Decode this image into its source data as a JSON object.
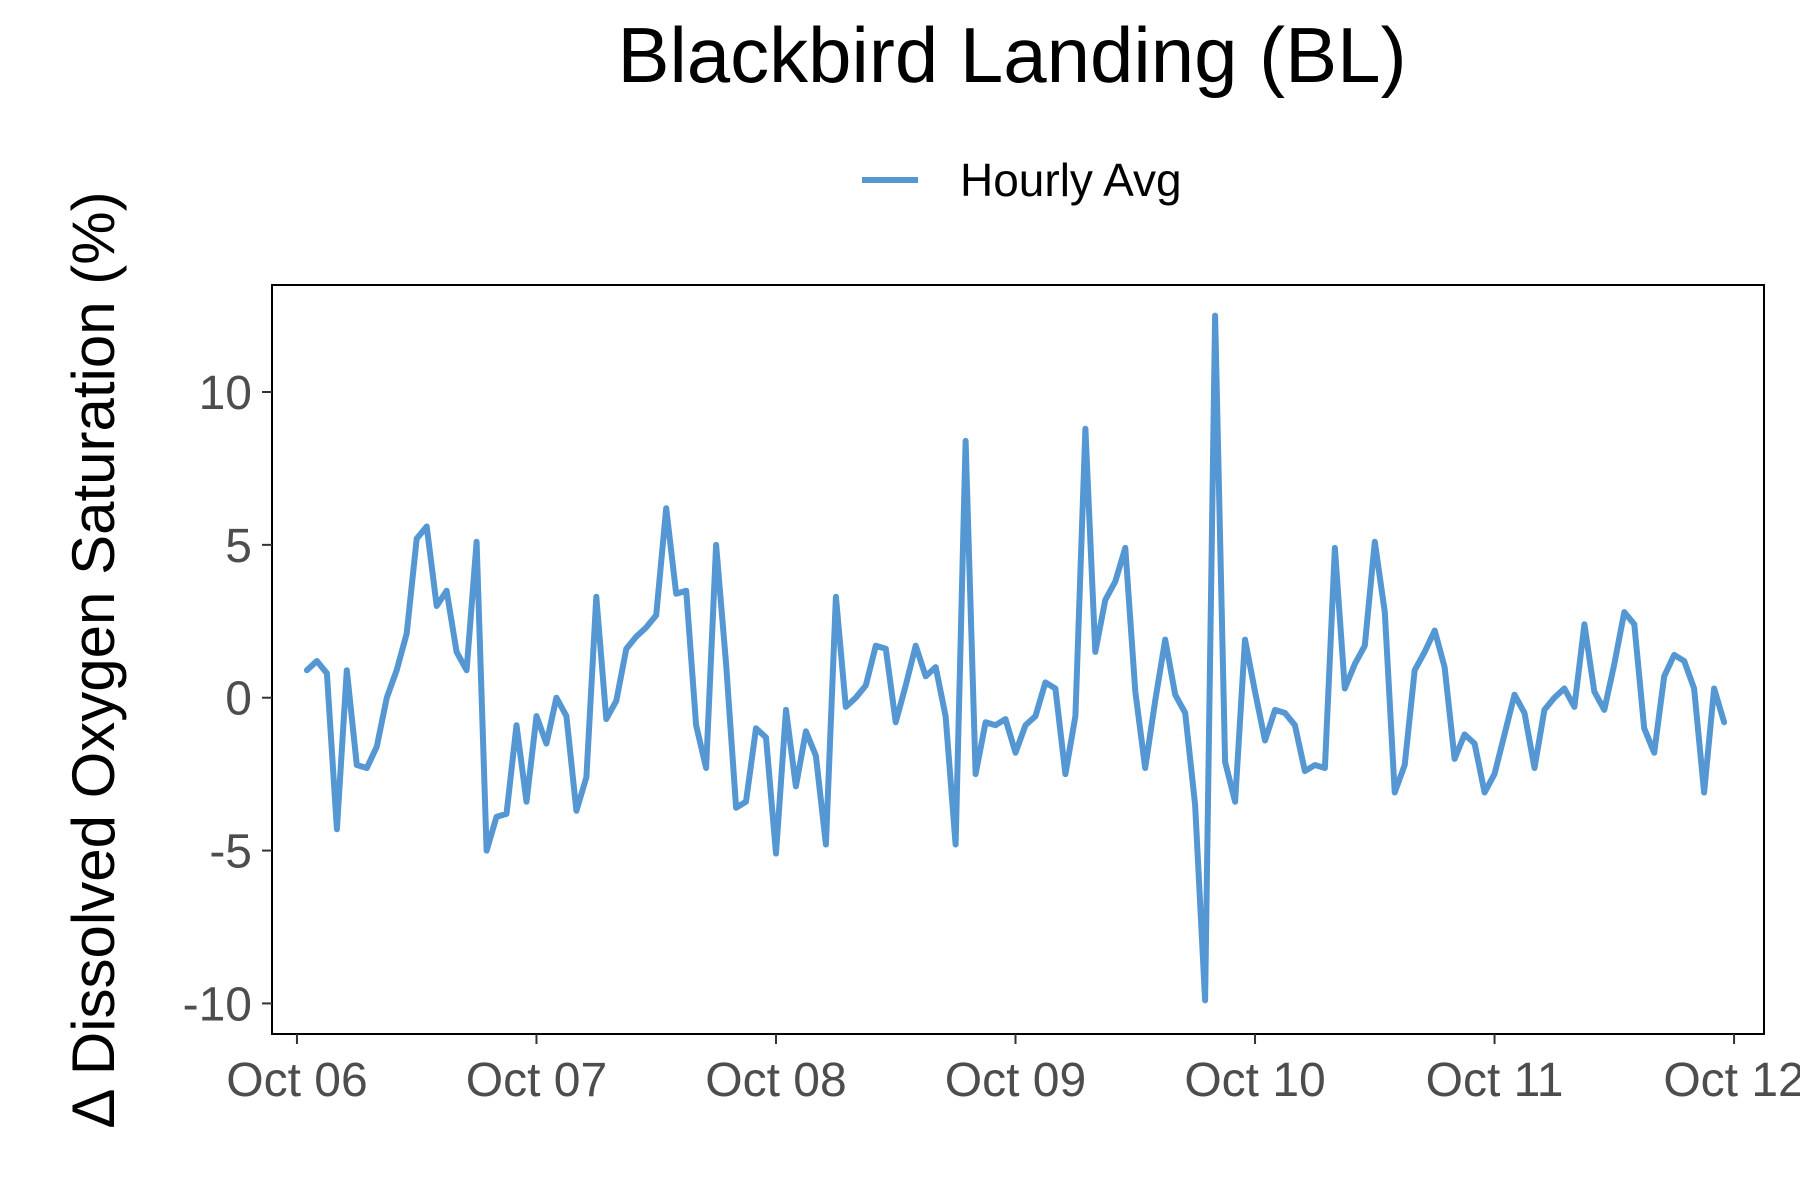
{
  "chart_data": {
    "type": "line",
    "title": "Blackbird Landing (BL)",
    "xlabel": "",
    "ylabel": "Δ Dissolved Oxygen Saturation (%)",
    "legend": {
      "position": "top",
      "entries": [
        "Hourly Avg"
      ]
    },
    "grid": false,
    "xlim": [
      "2023-10-05T21:30",
      "2023-10-12T03:00"
    ],
    "ylim": [
      -11,
      13.5
    ],
    "x_ticks": [
      {
        "date": "2023-10-06",
        "label": "Oct 06"
      },
      {
        "date": "2023-10-07",
        "label": "Oct 07"
      },
      {
        "date": "2023-10-08",
        "label": "Oct 08"
      },
      {
        "date": "2023-10-09",
        "label": "Oct 09"
      },
      {
        "date": "2023-10-10",
        "label": "Oct 10"
      },
      {
        "date": "2023-10-11",
        "label": "Oct 11"
      },
      {
        "date": "2023-10-12",
        "label": "Oct 12"
      }
    ],
    "y_ticks": [
      {
        "value": 10,
        "label": "10"
      },
      {
        "value": 5,
        "label": "5"
      },
      {
        "value": 0,
        "label": "0"
      },
      {
        "value": -5,
        "label": "-5"
      },
      {
        "value": -10,
        "label": "-10"
      }
    ],
    "series": [
      {
        "name": "Hourly Avg",
        "color": "#5497d3",
        "x": [
          "2023-10-06T01:00",
          "2023-10-06T02:00",
          "2023-10-06T03:00",
          "2023-10-06T04:00",
          "2023-10-06T05:00",
          "2023-10-06T06:00",
          "2023-10-06T07:00",
          "2023-10-06T08:00",
          "2023-10-06T09:00",
          "2023-10-06T10:00",
          "2023-10-06T11:00",
          "2023-10-06T12:00",
          "2023-10-06T13:00",
          "2023-10-06T14:00",
          "2023-10-06T15:00",
          "2023-10-06T16:00",
          "2023-10-06T17:00",
          "2023-10-06T18:00",
          "2023-10-06T19:00",
          "2023-10-06T20:00",
          "2023-10-06T21:00",
          "2023-10-06T22:00",
          "2023-10-06T23:00",
          "2023-10-07T00:00",
          "2023-10-07T01:00",
          "2023-10-07T02:00",
          "2023-10-07T03:00",
          "2023-10-07T04:00",
          "2023-10-07T05:00",
          "2023-10-07T06:00",
          "2023-10-07T07:00",
          "2023-10-07T08:00",
          "2023-10-07T09:00",
          "2023-10-07T10:00",
          "2023-10-07T11:00",
          "2023-10-07T12:00",
          "2023-10-07T13:00",
          "2023-10-07T14:00",
          "2023-10-07T15:00",
          "2023-10-07T16:00",
          "2023-10-07T17:00",
          "2023-10-07T18:00",
          "2023-10-07T19:00",
          "2023-10-07T20:00",
          "2023-10-07T21:00",
          "2023-10-07T22:00",
          "2023-10-07T23:00",
          "2023-10-08T00:00",
          "2023-10-08T01:00",
          "2023-10-08T02:00",
          "2023-10-08T03:00",
          "2023-10-08T04:00",
          "2023-10-08T05:00",
          "2023-10-08T06:00",
          "2023-10-08T07:00",
          "2023-10-08T08:00",
          "2023-10-08T09:00",
          "2023-10-08T10:00",
          "2023-10-08T11:00",
          "2023-10-08T12:00",
          "2023-10-08T13:00",
          "2023-10-08T14:00",
          "2023-10-08T15:00",
          "2023-10-08T16:00",
          "2023-10-08T17:00",
          "2023-10-08T18:00",
          "2023-10-08T19:00",
          "2023-10-08T20:00",
          "2023-10-08T21:00",
          "2023-10-08T22:00",
          "2023-10-08T23:00",
          "2023-10-09T00:00",
          "2023-10-09T01:00",
          "2023-10-09T02:00",
          "2023-10-09T03:00",
          "2023-10-09T04:00",
          "2023-10-09T05:00",
          "2023-10-09T06:00",
          "2023-10-09T07:00",
          "2023-10-09T08:00",
          "2023-10-09T09:00",
          "2023-10-09T10:00",
          "2023-10-09T11:00",
          "2023-10-09T12:00",
          "2023-10-09T13:00",
          "2023-10-09T14:00",
          "2023-10-09T15:00",
          "2023-10-09T16:00",
          "2023-10-09T17:00",
          "2023-10-09T18:00",
          "2023-10-09T19:00",
          "2023-10-09T20:00",
          "2023-10-09T21:00",
          "2023-10-09T22:00",
          "2023-10-09T23:00",
          "2023-10-10T00:00",
          "2023-10-10T01:00",
          "2023-10-10T02:00",
          "2023-10-10T03:00",
          "2023-10-10T04:00",
          "2023-10-10T05:00",
          "2023-10-10T06:00",
          "2023-10-10T07:00",
          "2023-10-10T08:00",
          "2023-10-10T09:00",
          "2023-10-10T10:00",
          "2023-10-10T11:00",
          "2023-10-10T12:00",
          "2023-10-10T13:00",
          "2023-10-10T14:00",
          "2023-10-10T15:00",
          "2023-10-10T16:00",
          "2023-10-10T17:00",
          "2023-10-10T18:00",
          "2023-10-10T19:00",
          "2023-10-10T20:00",
          "2023-10-10T21:00",
          "2023-10-10T22:00",
          "2023-10-10T23:00",
          "2023-10-11T00:00",
          "2023-10-11T01:00",
          "2023-10-11T02:00",
          "2023-10-11T03:00",
          "2023-10-11T04:00",
          "2023-10-11T05:00",
          "2023-10-11T06:00",
          "2023-10-11T07:00",
          "2023-10-11T08:00",
          "2023-10-11T09:00",
          "2023-10-11T10:00",
          "2023-10-11T11:00",
          "2023-10-11T12:00",
          "2023-10-11T13:00",
          "2023-10-11T14:00",
          "2023-10-11T15:00",
          "2023-10-11T16:00",
          "2023-10-11T17:00",
          "2023-10-11T18:00",
          "2023-10-11T19:00",
          "2023-10-11T20:00",
          "2023-10-11T21:00",
          "2023-10-11T22:00",
          "2023-10-11T23:00"
        ],
        "y": [
          0.9,
          1.2,
          0.8,
          -4.3,
          0.9,
          -2.2,
          -2.3,
          -1.6,
          0.0,
          0.9,
          2.1,
          5.2,
          5.6,
          3.0,
          3.5,
          1.5,
          0.9,
          5.1,
          -5.0,
          -3.9,
          -3.8,
          -0.9,
          -3.4,
          -0.6,
          -1.5,
          0.0,
          -0.6,
          -3.7,
          -2.6,
          3.3,
          -0.7,
          -0.1,
          1.6,
          2.0,
          2.3,
          2.7,
          6.2,
          3.4,
          3.5,
          -0.9,
          -2.3,
          5.0,
          1.1,
          -3.6,
          -3.4,
          -1.0,
          -1.3,
          -5.1,
          -0.4,
          -2.9,
          -1.1,
          -1.9,
          -4.8,
          3.3,
          -0.3,
          0.0,
          0.4,
          1.7,
          1.6,
          -0.8,
          0.4,
          1.7,
          0.7,
          1.0,
          -0.6,
          -4.8,
          8.4,
          -2.5,
          -0.8,
          -0.9,
          -0.7,
          -1.8,
          -0.9,
          -0.6,
          0.5,
          0.3,
          -2.5,
          -0.6,
          8.8,
          1.5,
          3.2,
          3.8,
          4.9,
          0.2,
          -2.3,
          -0.1,
          1.9,
          0.1,
          -0.5,
          -3.5,
          -9.9,
          12.5,
          -2.1,
          -3.4,
          1.9,
          0.2,
          -1.4,
          -0.4,
          -0.5,
          -0.9,
          -2.4,
          -2.2,
          -2.3,
          4.9,
          0.3,
          1.1,
          1.7,
          5.1,
          2.8,
          -3.1,
          -2.2,
          0.9,
          1.5,
          2.2,
          1.0,
          -2.0,
          -1.2,
          -1.5,
          -3.1,
          -2.5,
          -1.2,
          0.1,
          -0.5,
          -2.3,
          -0.4,
          0.0,
          0.3,
          -0.3,
          2.4,
          0.2,
          -0.4,
          1.1,
          2.8,
          2.4,
          -1.0,
          -1.8,
          0.7,
          1.4,
          1.2,
          0.3,
          -3.1,
          0.3,
          -0.8
        ]
      }
    ]
  }
}
